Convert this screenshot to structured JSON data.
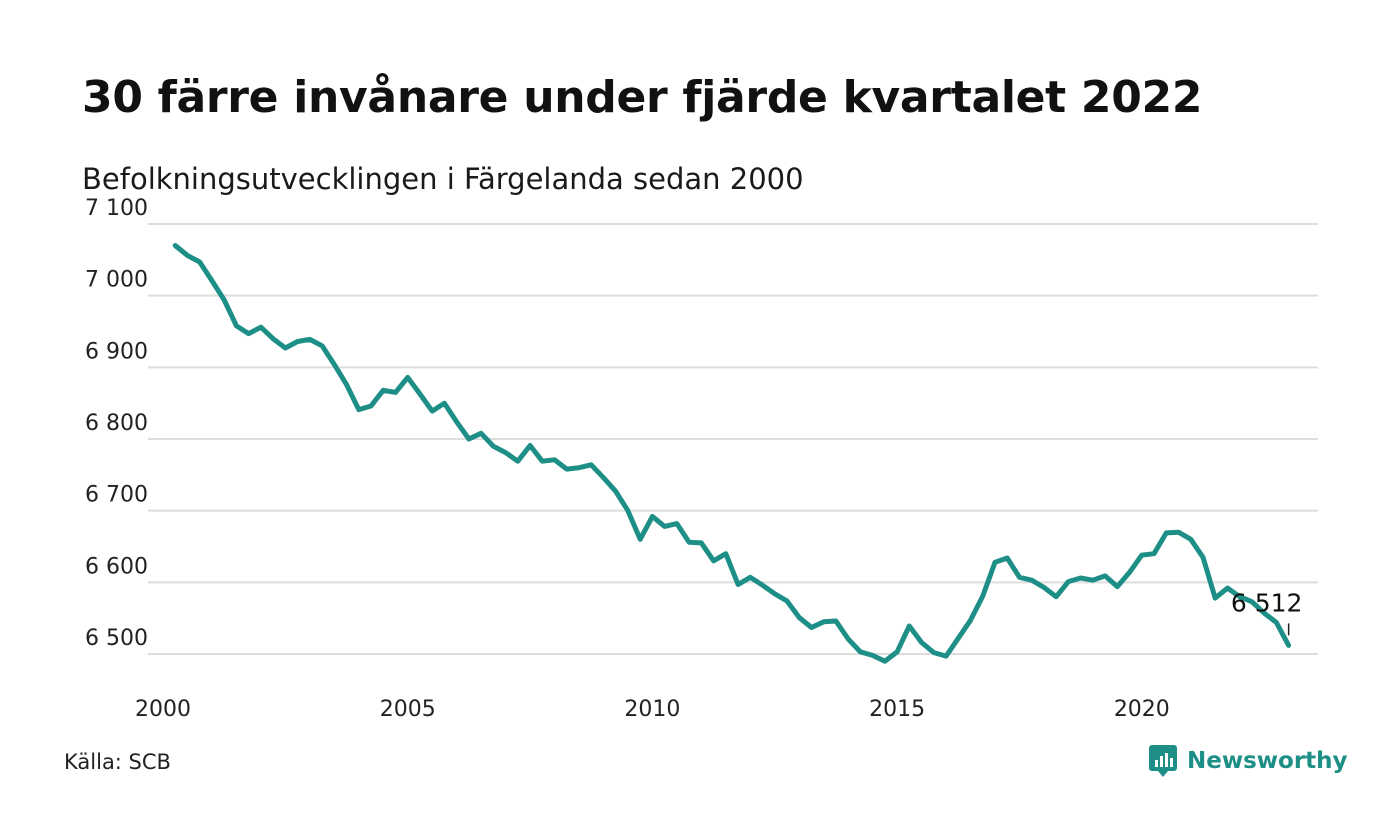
{
  "title": "30 färre invånare under fjärde kvartalet 2022",
  "subtitle": "Befolkningsutvecklingen i Färgelanda sedan 2000",
  "source": "Källa: SCB",
  "brand": {
    "name": "Newsworthy",
    "icon": "newsworthy-logo-icon",
    "color": "#1e8f86"
  },
  "chart_data": {
    "type": "line",
    "title": "30 färre invånare under fjärde kvartalet 2022",
    "subtitle": "Befolkningsutvecklingen i Färgelanda sedan 2000",
    "xlabel": "",
    "ylabel": "",
    "xlim": [
      2000,
      2023.6
    ],
    "ylim": [
      6480,
      7100
    ],
    "grid": true,
    "line_color": "#1e8f86",
    "x_ticks": [
      {
        "value": 2000,
        "label": "2000"
      },
      {
        "value": 2005,
        "label": "2005"
      },
      {
        "value": 2010,
        "label": "2010"
      },
      {
        "value": 2015,
        "label": "2015"
      },
      {
        "value": 2020,
        "label": "2020"
      }
    ],
    "y_ticks": [
      {
        "value": 6500,
        "label": "6 500"
      },
      {
        "value": 6600,
        "label": "6 600"
      },
      {
        "value": 6700,
        "label": "6 700"
      },
      {
        "value": 6800,
        "label": "6 800"
      },
      {
        "value": 6900,
        "label": "6 900"
      },
      {
        "value": 7000,
        "label": "7 000"
      },
      {
        "value": 7100,
        "label": "7 100"
      }
    ],
    "end_label": "6 512",
    "series": [
      {
        "x": [
          2000.25,
          2000.5,
          2000.75,
          2001.0,
          2001.25,
          2001.5,
          2001.75,
          2002.0,
          2002.25,
          2002.5,
          2002.75,
          2003.0,
          2003.25,
          2003.5,
          2003.75,
          2004.0,
          2004.25,
          2004.5,
          2004.75,
          2005.0,
          2005.25,
          2005.5,
          2005.75,
          2006.0,
          2006.25,
          2006.5,
          2006.75,
          2007.0,
          2007.25,
          2007.5,
          2007.75,
          2008.0,
          2008.25,
          2008.5,
          2008.75,
          2009.0,
          2009.25,
          2009.5,
          2009.75,
          2010.0,
          2010.25,
          2010.5,
          2010.75,
          2011.0,
          2011.25,
          2011.5,
          2011.75,
          2012.0,
          2012.25,
          2012.5,
          2012.75,
          2013.0,
          2013.25,
          2013.5,
          2013.75,
          2014.0,
          2014.25,
          2014.5,
          2014.75,
          2015.0,
          2015.25,
          2015.5,
          2015.75,
          2016.0,
          2016.25,
          2016.5,
          2016.75,
          2017.0,
          2017.25,
          2017.5,
          2017.75,
          2018.0,
          2018.25,
          2018.5,
          2018.75,
          2019.0,
          2019.25,
          2019.5,
          2019.75,
          2020.0,
          2020.25,
          2020.5,
          2020.75,
          2021.0,
          2021.25,
          2021.5,
          2021.75,
          2022.0,
          2022.25,
          2022.5,
          2022.75,
          2023.0
        ],
        "values": [
          7070,
          7056,
          7047,
          7021,
          6994,
          6958,
          6947,
          6956,
          6940,
          6927,
          6936,
          6939,
          6930,
          6904,
          6876,
          6841,
          6846,
          6868,
          6865,
          6886,
          6863,
          6839,
          6850,
          6824,
          6800,
          6808,
          6790,
          6781,
          6769,
          6791,
          6769,
          6771,
          6758,
          6760,
          6764,
          6746,
          6727,
          6700,
          6660,
          6692,
          6678,
          6682,
          6656,
          6655,
          6630,
          6640,
          6597,
          6607,
          6596,
          6584,
          6574,
          6551,
          6537,
          6545,
          6546,
          6521,
          6503,
          6498,
          6490,
          6503,
          6539,
          6516,
          6502,
          6497,
          6522,
          6547,
          6581,
          6628,
          6634,
          6607,
          6603,
          6593,
          6580,
          6601,
          6606,
          6603,
          6609,
          6594,
          6614,
          6638,
          6640,
          6669,
          6670,
          6660,
          6635,
          6578,
          6592,
          6580,
          6573,
          6557,
          6544,
          6512
        ]
      }
    ]
  }
}
